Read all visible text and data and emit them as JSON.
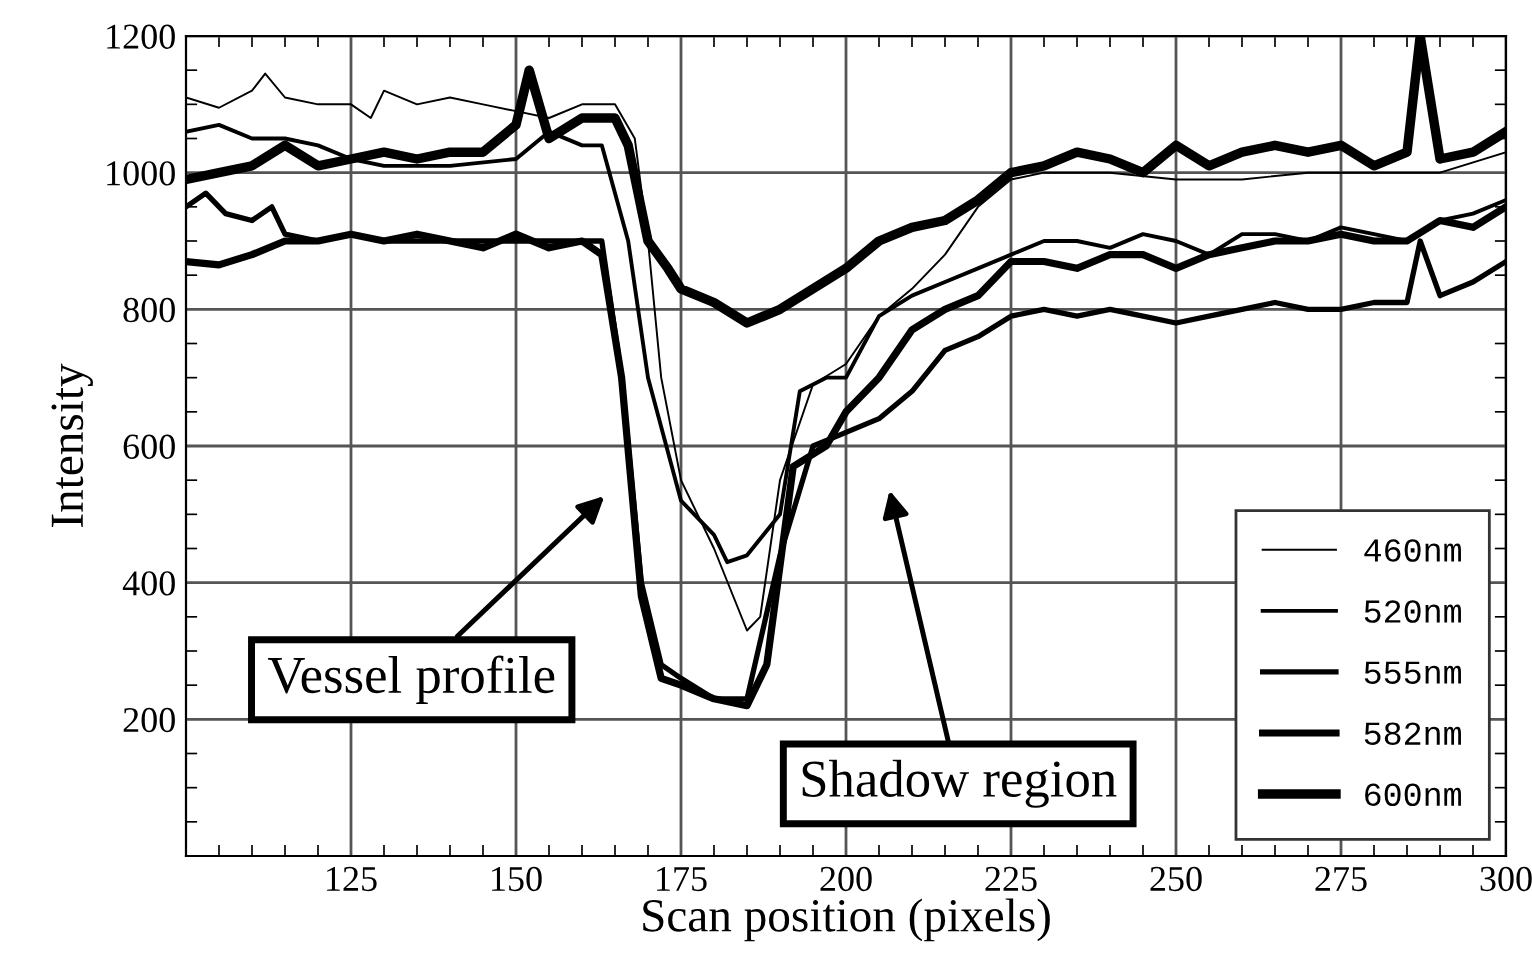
{
  "chart_data": {
    "type": "line",
    "xlabel": "Scan position (pixels)",
    "ylabel": "Intensity",
    "xlim": [
      100,
      300
    ],
    "xticks": [
      125,
      150,
      175,
      200,
      225,
      250,
      275,
      300
    ],
    "ylim": [
      0,
      1200
    ],
    "yticks": [
      200,
      400,
      600,
      800,
      1000,
      1200
    ],
    "grid": true,
    "legend": "bottom right",
    "marker": "none",
    "line_style": "solid",
    "annotations": [
      "Vessel profile",
      "Shadow region"
    ],
    "series": [
      {
        "name": "460nm",
        "color": "#000000",
        "x": [
          100,
          105,
          110,
          112,
          115,
          120,
          125,
          128,
          130,
          135,
          140,
          145,
          150,
          155,
          160,
          165,
          168,
          170,
          172,
          175,
          180,
          185,
          187,
          190,
          195,
          200,
          205,
          210,
          215,
          220,
          225,
          230,
          240,
          250,
          260,
          270,
          280,
          290,
          300
        ],
        "values": [
          1110,
          1095,
          1120,
          1145,
          1110,
          1100,
          1100,
          1080,
          1120,
          1100,
          1110,
          1100,
          1090,
          1080,
          1100,
          1100,
          1050,
          900,
          700,
          550,
          450,
          330,
          350,
          550,
          690,
          720,
          790,
          830,
          880,
          950,
          990,
          1000,
          1000,
          990,
          990,
          1000,
          1000,
          1000,
          1030
        ]
      },
      {
        "name": "520nm",
        "color": "#000000",
        "x": [
          100,
          105,
          110,
          115,
          120,
          125,
          130,
          140,
          150,
          155,
          160,
          163,
          167,
          170,
          175,
          180,
          182,
          185,
          190,
          193,
          197,
          200,
          205,
          210,
          215,
          220,
          225,
          230,
          235,
          240,
          245,
          250,
          255,
          260,
          265,
          270,
          275,
          280,
          285,
          290,
          295,
          300
        ],
        "values": [
          1060,
          1070,
          1050,
          1050,
          1040,
          1020,
          1010,
          1010,
          1020,
          1060,
          1040,
          1040,
          900,
          700,
          520,
          470,
          430,
          440,
          500,
          680,
          700,
          700,
          790,
          820,
          840,
          860,
          880,
          900,
          900,
          890,
          910,
          900,
          880,
          910,
          910,
          900,
          920,
          910,
          900,
          930,
          940,
          960
        ]
      },
      {
        "name": "555nm",
        "color": "#000000",
        "x": [
          100,
          103,
          106,
          110,
          113,
          115,
          120,
          125,
          130,
          140,
          150,
          160,
          163,
          166,
          169,
          172,
          175,
          180,
          185,
          190,
          195,
          200,
          205,
          210,
          215,
          220,
          225,
          230,
          235,
          240,
          245,
          250,
          255,
          260,
          265,
          270,
          275,
          280,
          285,
          287,
          290,
          295,
          300
        ],
        "values": [
          950,
          970,
          940,
          930,
          950,
          910,
          900,
          910,
          900,
          900,
          900,
          900,
          900,
          700,
          400,
          280,
          260,
          230,
          230,
          440,
          600,
          620,
          640,
          680,
          740,
          760,
          790,
          800,
          790,
          800,
          790,
          780,
          790,
          800,
          810,
          800,
          800,
          810,
          810,
          900,
          820,
          840,
          870
        ]
      },
      {
        "name": "582nm",
        "color": "#000000",
        "x": [
          100,
          105,
          110,
          115,
          120,
          125,
          130,
          135,
          140,
          145,
          150,
          155,
          160,
          163,
          166,
          169,
          172,
          175,
          180,
          185,
          188,
          192,
          197,
          200,
          205,
          210,
          215,
          220,
          225,
          230,
          235,
          240,
          245,
          250,
          255,
          260,
          265,
          270,
          275,
          280,
          285,
          290,
          295,
          300
        ],
        "values": [
          870,
          865,
          880,
          900,
          900,
          910,
          900,
          910,
          900,
          890,
          910,
          890,
          900,
          880,
          700,
          380,
          260,
          250,
          230,
          220,
          280,
          570,
          600,
          650,
          700,
          770,
          800,
          820,
          870,
          870,
          860,
          880,
          880,
          860,
          880,
          890,
          900,
          900,
          910,
          900,
          900,
          930,
          920,
          950
        ]
      },
      {
        "name": "600nm",
        "color": "#000000",
        "x": [
          100,
          105,
          110,
          115,
          120,
          125,
          130,
          135,
          140,
          145,
          150,
          152,
          155,
          160,
          165,
          167,
          170,
          173,
          175,
          180,
          185,
          190,
          195,
          200,
          205,
          210,
          215,
          220,
          225,
          230,
          235,
          240,
          245,
          250,
          255,
          260,
          265,
          270,
          275,
          280,
          285,
          287,
          290,
          295,
          300
        ],
        "values": [
          990,
          1000,
          1010,
          1040,
          1010,
          1020,
          1030,
          1020,
          1030,
          1030,
          1070,
          1150,
          1050,
          1080,
          1080,
          1040,
          900,
          860,
          830,
          810,
          780,
          800,
          830,
          860,
          900,
          920,
          930,
          960,
          1000,
          1010,
          1030,
          1020,
          1000,
          1040,
          1010,
          1030,
          1040,
          1030,
          1040,
          1010,
          1030,
          1200,
          1020,
          1030,
          1060
        ]
      }
    ]
  }
}
